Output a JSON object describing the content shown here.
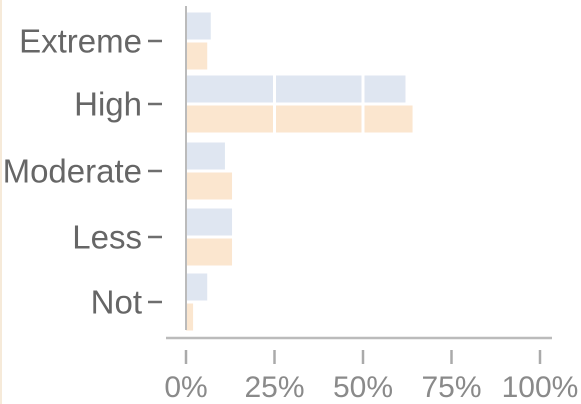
{
  "chart_data": {
    "type": "bar",
    "orientation": "horizontal",
    "categories": [
      "Extreme",
      "High",
      "Moderate",
      "Less",
      "Not"
    ],
    "series": [
      {
        "values": [
          7,
          62,
          11,
          13,
          6
        ],
        "color": "#dfe6f1"
      },
      {
        "values": [
          6,
          64,
          13,
          13,
          2
        ],
        "color": "#fbe6cf"
      }
    ],
    "xlim": [
      0,
      100
    ],
    "x_ticks": [
      "0%",
      "25%",
      "50%",
      "75%",
      "100%"
    ],
    "x_tick_values": [
      0,
      25,
      50,
      75,
      100
    ],
    "gridlines": {
      "vertical": true,
      "color": "#ffffff"
    },
    "axis_color": "#bbbbbb",
    "title": "",
    "xlabel": "",
    "ylabel": ""
  }
}
